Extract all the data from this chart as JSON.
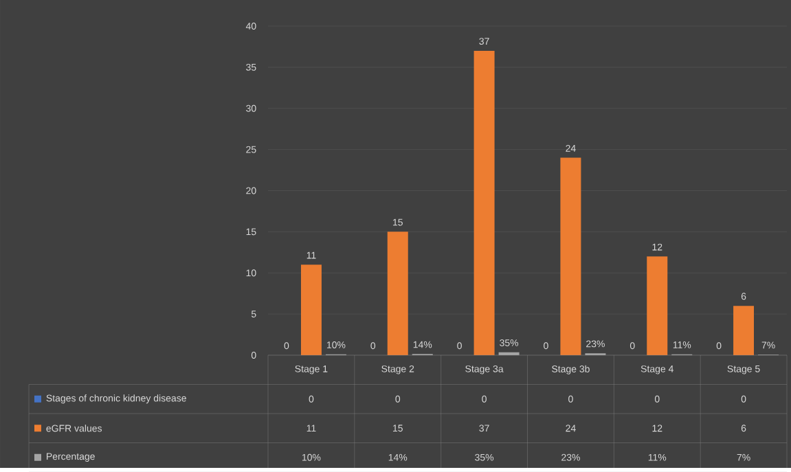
{
  "chart_data": {
    "type": "bar",
    "categories": [
      "Stage 1",
      "Stage 2",
      "Stage 3a",
      "Stage 3b",
      "Stage 4",
      "Stage 5"
    ],
    "ylim": [
      0,
      40
    ],
    "yticks": [
      0,
      5,
      10,
      15,
      20,
      25,
      30,
      35,
      40
    ],
    "grid": "y",
    "legend": "bottom",
    "series": [
      {
        "name": "Stages of chronic kidney disease",
        "color": "#4472c4",
        "values": [
          0,
          0,
          0,
          0,
          0,
          0
        ],
        "value_labels": [
          "0",
          "0",
          "0",
          "0",
          "0",
          "0"
        ]
      },
      {
        "name": "eGFR values",
        "color": "#ed7d31",
        "values": [
          11,
          15,
          37,
          24,
          12,
          6
        ],
        "value_labels": [
          "11",
          "15",
          "37",
          "24",
          "12",
          "6"
        ]
      },
      {
        "name": "Percentage",
        "color": "#a5a5a5",
        "values": [
          0.1,
          0.14,
          0.35,
          0.23,
          0.11,
          0.07
        ],
        "value_labels": [
          "10%",
          "14%",
          "35%",
          "23%",
          "11%",
          "7%"
        ]
      }
    ]
  }
}
